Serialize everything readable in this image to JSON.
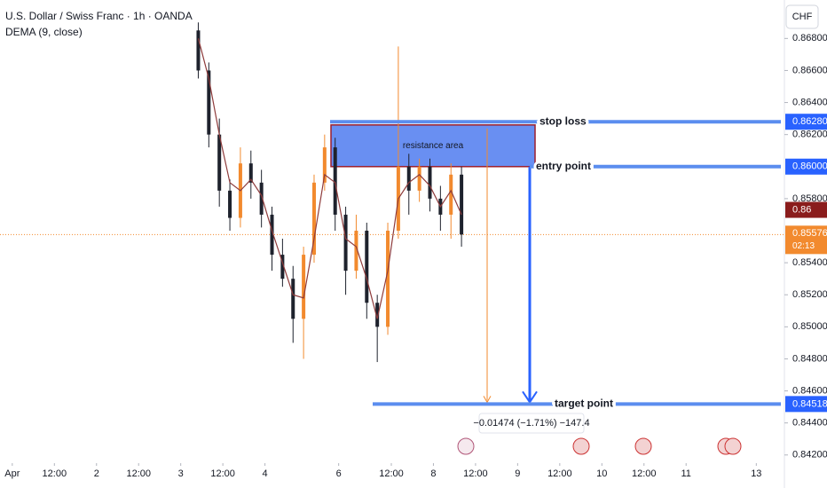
{
  "header": {
    "title": "U.S. Dollar / Swiss Franc · 1h · OANDA",
    "indicator": "DEMA (9, close)",
    "currency": "CHF"
  },
  "chart_data": {
    "type": "candlestick",
    "x": [
      53,
      56,
      59,
      62,
      65,
      68,
      71,
      74,
      77,
      80,
      83,
      86,
      89,
      92,
      95,
      98,
      101,
      104,
      107,
      110,
      113,
      116,
      119,
      122,
      125,
      128
    ],
    "open": [
      0.8685,
      0.866,
      0.862,
      0.8585,
      0.8568,
      0.8602,
      0.859,
      0.857,
      0.8545,
      0.853,
      0.8505,
      0.8545,
      0.859,
      0.8612,
      0.857,
      0.8535,
      0.856,
      0.8515,
      0.85,
      0.856,
      0.86,
      0.8585,
      0.86,
      0.858,
      0.857,
      0.8595
    ],
    "high": [
      0.869,
      0.8665,
      0.863,
      0.8592,
      0.8612,
      0.861,
      0.8598,
      0.8575,
      0.8555,
      0.8538,
      0.855,
      0.8595,
      0.862,
      0.8618,
      0.8575,
      0.857,
      0.8565,
      0.852,
      0.8565,
      0.8675,
      0.8608,
      0.8605,
      0.8605,
      0.8588,
      0.8602,
      0.86
    ],
    "low": [
      0.8655,
      0.8612,
      0.8575,
      0.856,
      0.8562,
      0.858,
      0.8562,
      0.8535,
      0.8525,
      0.849,
      0.848,
      0.854,
      0.8585,
      0.856,
      0.852,
      0.853,
      0.8505,
      0.8478,
      0.8495,
      0.8555,
      0.857,
      0.8578,
      0.8572,
      0.856,
      0.8555,
      0.855
    ],
    "close": [
      0.866,
      0.862,
      0.8585,
      0.8568,
      0.8602,
      0.859,
      0.857,
      0.8545,
      0.853,
      0.8505,
      0.8545,
      0.859,
      0.8612,
      0.857,
      0.8535,
      0.856,
      0.8515,
      0.85,
      0.856,
      0.86,
      0.8585,
      0.86,
      0.858,
      0.857,
      0.8595,
      0.85576
    ],
    "dema": [
      0.868,
      0.8655,
      0.862,
      0.859,
      0.8585,
      0.8592,
      0.8582,
      0.856,
      0.854,
      0.852,
      0.8518,
      0.8555,
      0.8595,
      0.859,
      0.8555,
      0.855,
      0.853,
      0.8505,
      0.8535,
      0.858,
      0.859,
      0.8595,
      0.8588,
      0.8575,
      0.8585,
      0.857
    ],
    "up_color": "#f28a2e",
    "down_color": "#1e222d",
    "dema_color": "#8e3b3b",
    "xlim": [
      -3.5,
      219
    ],
    "xticks": [
      {
        "value": 0,
        "label": "Apr"
      },
      {
        "value": 12,
        "label": "12:00"
      },
      {
        "value": 24,
        "label": "2"
      },
      {
        "value": 36,
        "label": "12:00"
      },
      {
        "value": 48,
        "label": "3"
      },
      {
        "value": 60,
        "label": "12:00"
      },
      {
        "value": 72,
        "label": "4"
      },
      {
        "value": 93,
        "label": "6"
      },
      {
        "value": 108,
        "label": "12:00"
      },
      {
        "value": 120,
        "label": "8"
      },
      {
        "value": 132,
        "label": "12:00"
      },
      {
        "value": 144,
        "label": "9"
      },
      {
        "value": 156,
        "label": "12:00"
      },
      {
        "value": 168,
        "label": "10"
      },
      {
        "value": 180,
        "label": "12:00"
      },
      {
        "value": 192,
        "label": "11"
      },
      {
        "value": 212,
        "label": "13"
      }
    ],
    "ylim": [
      0.8416,
      0.8704
    ],
    "yticks": [
      {
        "value": 0.868,
        "label": "0.86800"
      },
      {
        "value": 0.866,
        "label": "0.86600"
      },
      {
        "value": 0.864,
        "label": "0.86400"
      },
      {
        "value": 0.862,
        "label": "0.86200"
      },
      {
        "value": 0.858,
        "label": "0.85800"
      },
      {
        "value": 0.854,
        "label": "0.85400"
      },
      {
        "value": 0.852,
        "label": "0.85200"
      },
      {
        "value": 0.85,
        "label": "0.85000"
      },
      {
        "value": 0.848,
        "label": "0.84800"
      },
      {
        "value": 0.846,
        "label": "0.84600"
      },
      {
        "value": 0.844,
        "label": "0.84400"
      },
      {
        "value": 0.842,
        "label": "0.84200"
      }
    ],
    "levels": [
      {
        "name": "stop loss",
        "value": 0.8628,
        "label": "0.86280"
      },
      {
        "name": "entry point",
        "value": 0.86,
        "label": "0.86000"
      },
      {
        "name": "target point",
        "value": 0.84518,
        "label": "0.84518"
      }
    ],
    "level_color": "#5b8def",
    "level_text_colors": [
      "#f28a2e",
      "#5b8def",
      "#5b8def"
    ],
    "resistance": {
      "label": "resistance area",
      "top": 0.8626,
      "bottom": 0.86
    },
    "current_price": {
      "value": 0.85576,
      "label": "0.85576",
      "countdown": "02:13"
    },
    "badge": {
      "value": 0.8573,
      "label": "0.86"
    },
    "measure": {
      "label": "−0.01474 (−1.71%) −147.4"
    }
  }
}
